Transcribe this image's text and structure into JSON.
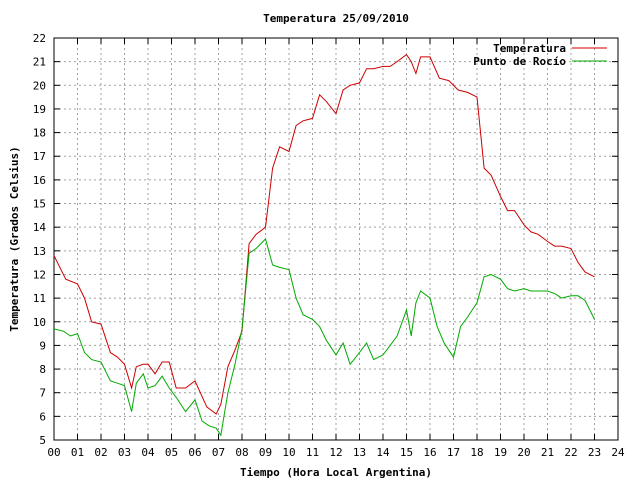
{
  "chart_data": {
    "type": "line",
    "title": "Temperatura 25/09/2010",
    "xlabel": "Tiempo (Hora Local Argentina)",
    "ylabel": "Temperatura (Grados Celsius)",
    "xlim": [
      0,
      24
    ],
    "ylim": [
      5,
      22
    ],
    "grid": true,
    "legend_position": "top-right",
    "x_ticks": [
      "00",
      "01",
      "02",
      "03",
      "04",
      "05",
      "06",
      "07",
      "08",
      "09",
      "10",
      "11",
      "12",
      "13",
      "14",
      "15",
      "16",
      "17",
      "18",
      "19",
      "20",
      "21",
      "22",
      "23",
      "24"
    ],
    "y_ticks": [
      "5",
      "6",
      "7",
      "8",
      "9",
      "10",
      "11",
      "12",
      "13",
      "14",
      "15",
      "16",
      "17",
      "18",
      "19",
      "20",
      "21",
      "22"
    ],
    "series": [
      {
        "name": "Temperatura",
        "color": "#cc0000",
        "x": [
          0.0,
          0.3,
          0.5,
          1.0,
          1.3,
          1.6,
          2.0,
          2.4,
          2.7,
          3.0,
          3.3,
          3.5,
          3.8,
          4.0,
          4.3,
          4.6,
          4.9,
          5.2,
          5.6,
          6.0,
          6.5,
          6.9,
          7.1,
          7.4,
          7.7,
          8.0,
          8.3,
          8.6,
          9.0,
          9.3,
          9.6,
          10.0,
          10.3,
          10.6,
          11.0,
          11.3,
          11.6,
          12.0,
          12.3,
          12.6,
          13.0,
          13.3,
          13.6,
          14.0,
          14.3,
          14.6,
          15.0,
          15.2,
          15.4,
          15.6,
          16.0,
          16.4,
          16.8,
          17.2,
          17.6,
          18.0,
          18.3,
          18.6,
          19.0,
          19.3,
          19.6,
          20.0,
          20.3,
          20.6,
          21.0,
          21.3,
          21.6,
          22.0,
          22.3,
          22.6,
          23.0
        ],
        "y": [
          12.8,
          12.2,
          11.8,
          11.6,
          11.0,
          10.0,
          9.9,
          8.7,
          8.5,
          8.2,
          7.2,
          8.1,
          8.2,
          8.2,
          7.8,
          8.3,
          8.3,
          7.2,
          7.2,
          7.5,
          6.4,
          6.1,
          6.5,
          8.1,
          8.8,
          9.6,
          13.3,
          13.7,
          14.0,
          16.5,
          17.4,
          17.2,
          18.3,
          18.5,
          18.6,
          19.6,
          19.3,
          18.8,
          19.8,
          20.0,
          20.1,
          20.7,
          20.7,
          20.8,
          20.8,
          21.0,
          21.3,
          21.0,
          20.5,
          21.2,
          21.2,
          20.3,
          20.2,
          19.8,
          19.7,
          19.5,
          16.5,
          16.2,
          15.3,
          14.7,
          14.7,
          14.1,
          13.8,
          13.7,
          13.4,
          13.2,
          13.2,
          13.1,
          12.5,
          12.1,
          11.9
        ]
      },
      {
        "name": "Punto de Rocío",
        "color": "#00aa00",
        "x": [
          0.0,
          0.4,
          0.7,
          1.0,
          1.3,
          1.6,
          2.0,
          2.4,
          2.7,
          3.0,
          3.3,
          3.5,
          3.8,
          4.0,
          4.3,
          4.6,
          4.9,
          5.2,
          5.6,
          6.0,
          6.3,
          6.6,
          6.9,
          7.1,
          7.4,
          7.7,
          8.0,
          8.3,
          8.6,
          9.0,
          9.3,
          9.6,
          10.0,
          10.3,
          10.6,
          11.0,
          11.3,
          11.6,
          12.0,
          12.3,
          12.6,
          13.0,
          13.3,
          13.6,
          14.0,
          14.3,
          14.6,
          15.0,
          15.2,
          15.4,
          15.6,
          16.0,
          16.3,
          16.6,
          17.0,
          17.3,
          17.6,
          18.0,
          18.3,
          18.6,
          19.0,
          19.3,
          19.6,
          20.0,
          20.3,
          20.6,
          21.0,
          21.3,
          21.6,
          22.0,
          22.3,
          22.6,
          23.0
        ],
        "y": [
          9.7,
          9.6,
          9.4,
          9.5,
          8.7,
          8.4,
          8.3,
          7.5,
          7.4,
          7.3,
          6.2,
          7.4,
          7.8,
          7.2,
          7.3,
          7.7,
          7.2,
          6.8,
          6.2,
          6.7,
          5.8,
          5.6,
          5.5,
          5.2,
          7.0,
          8.2,
          9.7,
          12.9,
          13.1,
          13.5,
          12.4,
          12.3,
          12.2,
          11.0,
          10.3,
          10.1,
          9.8,
          9.2,
          8.6,
          9.1,
          8.2,
          8.7,
          9.1,
          8.4,
          8.6,
          9.0,
          9.4,
          10.5,
          9.4,
          10.8,
          11.3,
          11.0,
          9.8,
          9.1,
          8.5,
          9.8,
          10.2,
          10.8,
          11.9,
          12.0,
          11.8,
          11.4,
          11.3,
          11.4,
          11.3,
          11.3,
          11.3,
          11.2,
          11.0,
          11.1,
          11.1,
          10.9,
          10.1
        ]
      }
    ]
  }
}
